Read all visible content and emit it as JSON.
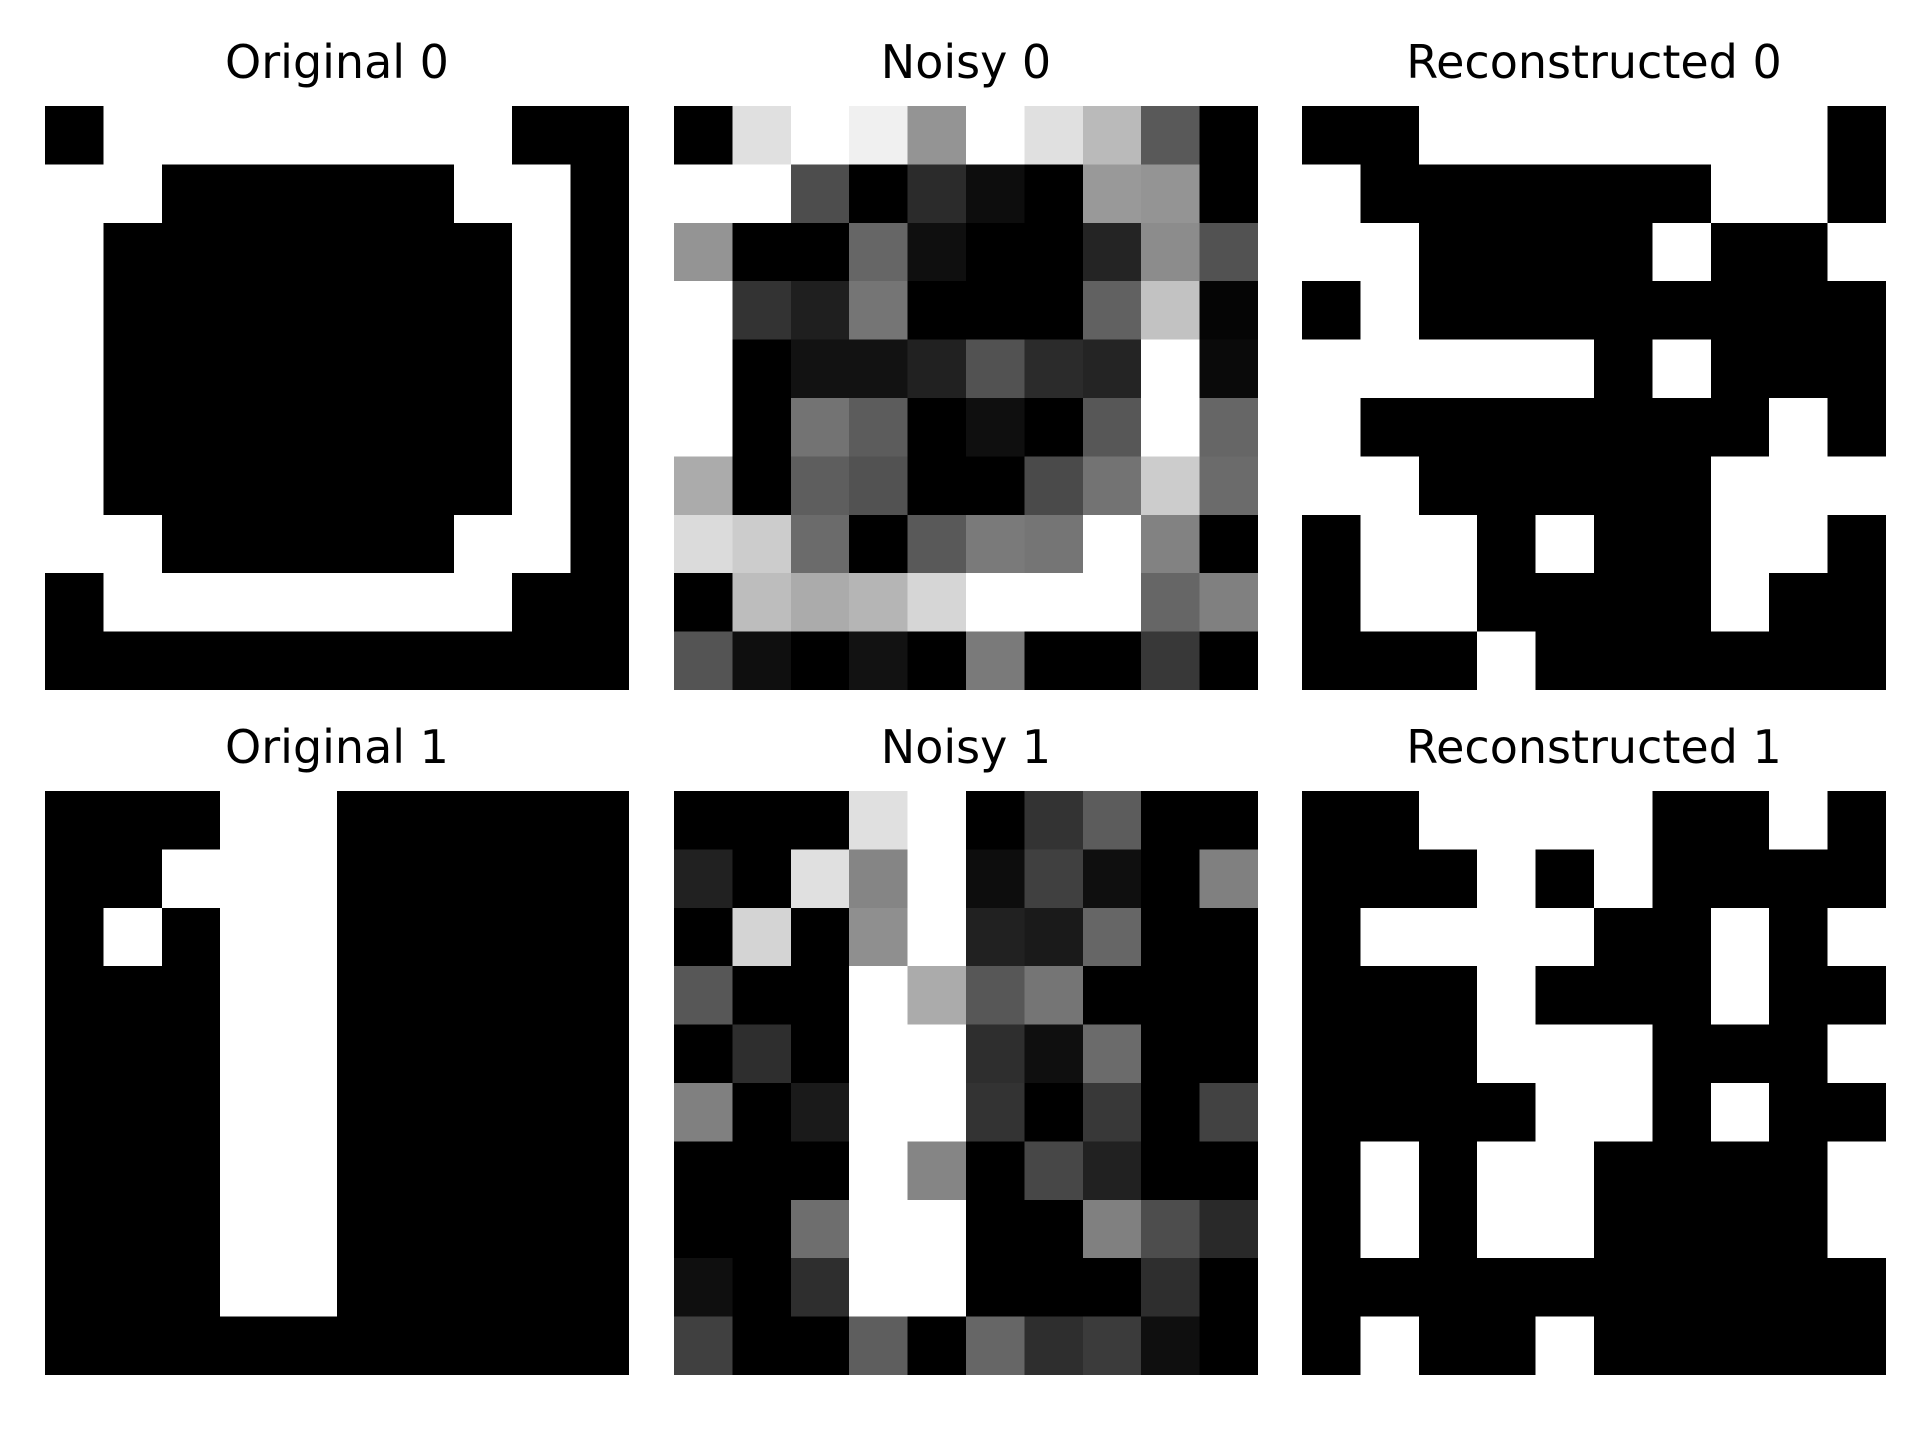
{
  "figure": {
    "grid_rows": 2,
    "grid_cols": 3
  },
  "chart_data": [
    {
      "type": "heatmap",
      "title": "Original 0",
      "colormap": "gray",
      "vmin": 0,
      "vmax": 1,
      "values": [
        [
          0,
          1,
          1,
          1,
          1,
          1,
          1,
          1,
          0,
          0
        ],
        [
          1,
          1,
          0,
          0,
          0,
          0,
          0,
          1,
          1,
          0
        ],
        [
          1,
          0,
          0,
          0,
          0,
          0,
          0,
          0,
          1,
          0
        ],
        [
          1,
          0,
          0,
          0,
          0,
          0,
          0,
          0,
          1,
          0
        ],
        [
          1,
          0,
          0,
          0,
          0,
          0,
          0,
          0,
          1,
          0
        ],
        [
          1,
          0,
          0,
          0,
          0,
          0,
          0,
          0,
          1,
          0
        ],
        [
          1,
          0,
          0,
          0,
          0,
          0,
          0,
          0,
          1,
          0
        ],
        [
          1,
          1,
          0,
          0,
          0,
          0,
          0,
          1,
          1,
          0
        ],
        [
          0,
          1,
          1,
          1,
          1,
          1,
          1,
          1,
          0,
          0
        ],
        [
          0,
          0,
          0,
          0,
          0,
          0,
          0,
          0,
          0,
          0
        ]
      ]
    },
    {
      "type": "heatmap",
      "title": "Noisy 0",
      "colormap": "gray",
      "vmin": 0,
      "vmax": 1,
      "values": [
        [
          0.0,
          0.88,
          1.0,
          0.94,
          0.58,
          1.0,
          0.88,
          0.73,
          0.35,
          0.0
        ],
        [
          1.0,
          1.0,
          0.3,
          0.0,
          0.17,
          0.05,
          0.0,
          0.6,
          0.58,
          0.0
        ],
        [
          0.58,
          0.0,
          0.0,
          0.4,
          0.06,
          0.0,
          0.0,
          0.14,
          0.55,
          0.32
        ],
        [
          1.0,
          0.2,
          0.12,
          0.46,
          0.0,
          0.0,
          0.0,
          0.38,
          0.76,
          0.02
        ],
        [
          1.0,
          0.0,
          0.07,
          0.07,
          0.13,
          0.32,
          0.17,
          0.14,
          1.0,
          0.04
        ],
        [
          1.0,
          0.0,
          0.45,
          0.36,
          0.0,
          0.06,
          0.0,
          0.34,
          1.0,
          0.4
        ],
        [
          0.67,
          0.0,
          0.37,
          0.32,
          0.0,
          0.0,
          0.29,
          0.45,
          0.8,
          0.42
        ],
        [
          0.86,
          0.8,
          0.42,
          0.0,
          0.35,
          0.48,
          0.46,
          1.0,
          0.51,
          0.0
        ],
        [
          0.0,
          0.74,
          0.67,
          0.71,
          0.84,
          1.0,
          1.0,
          1.0,
          0.4,
          0.5
        ],
        [
          0.33,
          0.06,
          0.0,
          0.07,
          0.0,
          0.48,
          0.0,
          0.0,
          0.22,
          0.0
        ]
      ]
    },
    {
      "type": "heatmap",
      "title": "Reconstructed 0",
      "colormap": "gray",
      "vmin": 0,
      "vmax": 1,
      "values": [
        [
          0,
          0,
          1,
          1,
          1,
          1,
          1,
          1,
          1,
          0
        ],
        [
          1,
          0,
          0,
          0,
          0,
          0,
          0,
          1,
          1,
          0
        ],
        [
          1,
          1,
          0,
          0,
          0,
          0,
          1,
          0,
          0,
          1
        ],
        [
          0,
          1,
          0,
          0,
          0,
          0,
          0,
          0,
          0,
          0
        ],
        [
          1,
          1,
          1,
          1,
          1,
          0,
          1,
          0,
          0,
          0
        ],
        [
          1,
          0,
          0,
          0,
          0,
          0,
          0,
          0,
          1,
          0
        ],
        [
          1,
          1,
          0,
          0,
          0,
          0,
          0,
          1,
          1,
          1
        ],
        [
          0,
          1,
          1,
          0,
          1,
          0,
          0,
          1,
          1,
          0
        ],
        [
          0,
          1,
          1,
          0,
          0,
          0,
          0,
          1,
          0,
          0
        ],
        [
          0,
          0,
          0,
          1,
          0,
          0,
          0,
          0,
          0,
          0
        ]
      ]
    },
    {
      "type": "heatmap",
      "title": "Original 1",
      "colormap": "gray",
      "vmin": 0,
      "vmax": 1,
      "values": [
        [
          0,
          0,
          0,
          1,
          1,
          0,
          0,
          0,
          0,
          0
        ],
        [
          0,
          0,
          1,
          1,
          1,
          0,
          0,
          0,
          0,
          0
        ],
        [
          0,
          1,
          0,
          1,
          1,
          0,
          0,
          0,
          0,
          0
        ],
        [
          0,
          0,
          0,
          1,
          1,
          0,
          0,
          0,
          0,
          0
        ],
        [
          0,
          0,
          0,
          1,
          1,
          0,
          0,
          0,
          0,
          0
        ],
        [
          0,
          0,
          0,
          1,
          1,
          0,
          0,
          0,
          0,
          0
        ],
        [
          0,
          0,
          0,
          1,
          1,
          0,
          0,
          0,
          0,
          0
        ],
        [
          0,
          0,
          0,
          1,
          1,
          0,
          0,
          0,
          0,
          0
        ],
        [
          0,
          0,
          0,
          1,
          1,
          0,
          0,
          0,
          0,
          0
        ],
        [
          0,
          0,
          0,
          0,
          0,
          0,
          0,
          0,
          0,
          0
        ]
      ]
    },
    {
      "type": "heatmap",
      "title": "Noisy 1",
      "colormap": "gray",
      "vmin": 0,
      "vmax": 1,
      "values": [
        [
          0.0,
          0.0,
          0.0,
          0.88,
          1.0,
          0.0,
          0.2,
          0.36,
          0.0,
          0.0
        ],
        [
          0.13,
          0.0,
          0.88,
          0.52,
          1.0,
          0.05,
          0.25,
          0.06,
          0.0,
          0.5
        ],
        [
          0.0,
          0.83,
          0.0,
          0.56,
          1.0,
          0.13,
          0.1,
          0.4,
          0.0,
          0.0
        ],
        [
          0.34,
          0.0,
          0.0,
          1.0,
          0.67,
          0.34,
          0.46,
          0.0,
          0.0,
          0.0
        ],
        [
          0.0,
          0.18,
          0.0,
          1.0,
          1.0,
          0.18,
          0.06,
          0.42,
          0.0,
          0.0
        ],
        [
          0.5,
          0.0,
          0.1,
          1.0,
          1.0,
          0.2,
          0.0,
          0.22,
          0.0,
          0.26
        ],
        [
          0.0,
          0.0,
          0.0,
          1.0,
          0.52,
          0.0,
          0.28,
          0.13,
          0.0,
          0.0
        ],
        [
          0.0,
          0.0,
          0.43,
          1.0,
          1.0,
          0.0,
          0.0,
          0.5,
          0.3,
          0.16
        ],
        [
          0.06,
          0.0,
          0.18,
          1.0,
          1.0,
          0.0,
          0.0,
          0.0,
          0.18,
          0.0
        ],
        [
          0.25,
          0.0,
          0.0,
          0.37,
          0.0,
          0.4,
          0.18,
          0.23,
          0.06,
          0.0
        ]
      ]
    },
    {
      "type": "heatmap",
      "title": "Reconstructed 1",
      "colormap": "gray",
      "vmin": 0,
      "vmax": 1,
      "values": [
        [
          0,
          0,
          1,
          1,
          1,
          1,
          0,
          0,
          1,
          0
        ],
        [
          0,
          0,
          0,
          1,
          0,
          1,
          0,
          0,
          0,
          0
        ],
        [
          0,
          1,
          1,
          1,
          1,
          0,
          0,
          1,
          0,
          1
        ],
        [
          0,
          0,
          0,
          1,
          0,
          0,
          0,
          1,
          0,
          0
        ],
        [
          0,
          0,
          0,
          1,
          1,
          1,
          0,
          0,
          0,
          1
        ],
        [
          0,
          0,
          0,
          0,
          1,
          1,
          0,
          1,
          0,
          0
        ],
        [
          0,
          1,
          0,
          1,
          1,
          0,
          0,
          0,
          0,
          1
        ],
        [
          0,
          1,
          0,
          1,
          1,
          0,
          0,
          0,
          0,
          1
        ],
        [
          0,
          0,
          0,
          0,
          0,
          0,
          0,
          0,
          0,
          0
        ],
        [
          0,
          1,
          0,
          0,
          1,
          0,
          0,
          0,
          0,
          0
        ]
      ]
    }
  ]
}
